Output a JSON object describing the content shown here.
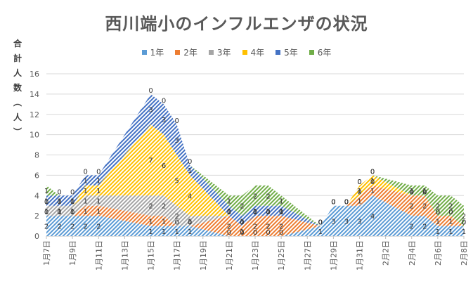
{
  "chart_data": {
    "type": "area",
    "stacked": true,
    "title": "西川端小のインフルエンザの状況",
    "ylabel": "合計人数（人）",
    "xlabel": "",
    "ylim": [
      0,
      16
    ],
    "yticks": [
      0,
      2,
      4,
      6,
      8,
      10,
      12,
      14,
      16
    ],
    "grid": true,
    "legend_position": "top",
    "fill_pattern": "diagonal-hatch",
    "categories": [
      "1月7日",
      "1月8日",
      "1月9日",
      "1月10日",
      "1月11日",
      "1月15日",
      "1月16日",
      "1月17日",
      "1月18日",
      "1月21日",
      "1月22日",
      "1月23日",
      "1月24日",
      "1月25日",
      "1月28日",
      "1月29日",
      "1月30日",
      "1月31日",
      "2月1日",
      "2月4日",
      "2月5日",
      "2月6日",
      "2月7日",
      "2月8日"
    ],
    "xtick_labels": [
      "1月7日",
      "1月9日",
      "1月11日",
      "1月13日",
      "1月15日",
      "1月17日",
      "1月19日",
      "1月21日",
      "1月23日",
      "1月25日",
      "1月27日",
      "1月29日",
      "1月31日",
      "2月2日",
      "2月4日",
      "2月6日",
      "2月8日"
    ],
    "series": [
      {
        "name": "1年",
        "color": "#5B9BD5",
        "values": [
          2,
          2,
          2,
          2,
          2,
          1,
          1,
          1,
          1,
          0,
          0,
          0,
          0,
          0,
          1,
          3,
          3,
          3,
          4,
          2,
          2,
          1,
          1,
          1
        ]
      },
      {
        "name": "2年",
        "color": "#ED7D31",
        "values": [
          0,
          0,
          0,
          1,
          1,
          1,
          1,
          0,
          0,
          2,
          1,
          2,
          2,
          2,
          0,
          0,
          0,
          1,
          1,
          2,
          2,
          1,
          1,
          0
        ]
      },
      {
        "name": "3年",
        "color": "#A5A5A5",
        "values": [
          1,
          1,
          1,
          1,
          1,
          2,
          2,
          2,
          1,
          0,
          0,
          0,
          0,
          0,
          0,
          0,
          0,
          0,
          0,
          0,
          0,
          0,
          0,
          0
        ]
      },
      {
        "name": "4年",
        "color": "#FFC000",
        "values": [
          0,
          0,
          0,
          1,
          1,
          7,
          6,
          5,
          4,
          0,
          0,
          0,
          0,
          0,
          0,
          0,
          0,
          1,
          1,
          0,
          0,
          0,
          0,
          0
        ]
      },
      {
        "name": "5年",
        "color": "#4472C4",
        "values": [
          1,
          1,
          1,
          1,
          1,
          3,
          3,
          3,
          1,
          1,
          1,
          1,
          1,
          1,
          0,
          0,
          0,
          0,
          0,
          0,
          0,
          0,
          0,
          0
        ]
      },
      {
        "name": "6年",
        "color": "#70AD47",
        "values": [
          1,
          0,
          0,
          0,
          0,
          0,
          0,
          0,
          0,
          1,
          2,
          2,
          2,
          1,
          0,
          0,
          0,
          0,
          0,
          1,
          1,
          2,
          2,
          2
        ]
      }
    ],
    "data_labels": true
  }
}
